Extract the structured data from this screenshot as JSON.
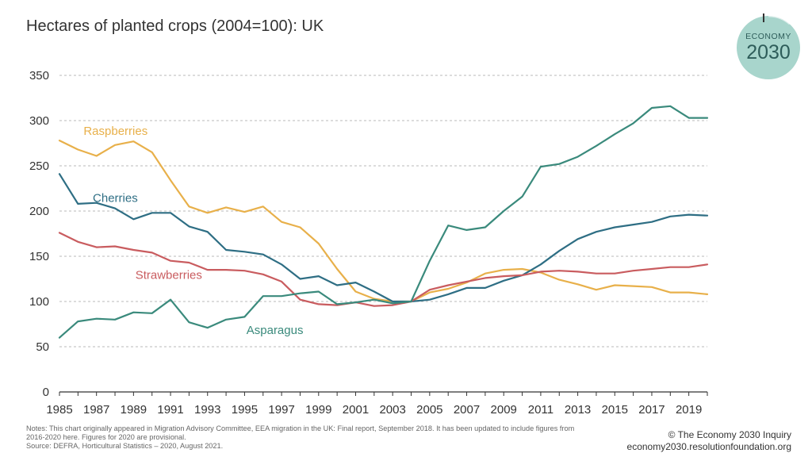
{
  "header": {
    "title": "Hectares of planted crops (2004=100): UK"
  },
  "badge": {
    "line1": "ECONOMY",
    "line2": "2030",
    "fill_color": "#a8d5cc",
    "text_color": "#2e5d5a"
  },
  "chart_data": {
    "type": "line",
    "title": "Hectares of planted crops (2004=100): UK",
    "xlabel": "",
    "ylabel": "",
    "xlim": [
      1985,
      2020
    ],
    "ylim": [
      0,
      350
    ],
    "y_ticks": [
      0,
      50,
      100,
      150,
      200,
      250,
      300,
      350
    ],
    "x_ticks": [
      1985,
      1987,
      1989,
      1991,
      1993,
      1995,
      1997,
      1999,
      2001,
      2003,
      2005,
      2007,
      2009,
      2011,
      2013,
      2015,
      2017,
      2019
    ],
    "grid": "horizontal-dashed",
    "x": [
      1985,
      1986,
      1987,
      1988,
      1989,
      1990,
      1991,
      1992,
      1993,
      1994,
      1995,
      1996,
      1997,
      1998,
      1999,
      2000,
      2001,
      2002,
      2003,
      2004,
      2005,
      2006,
      2007,
      2008,
      2009,
      2010,
      2011,
      2012,
      2013,
      2014,
      2015,
      2016,
      2017,
      2018,
      2019,
      2020
    ],
    "series": [
      {
        "name": "Raspberries",
        "color": "#e8b04a",
        "label_year": 1986.3,
        "label_value": 284,
        "values": [
          278,
          268,
          261,
          273,
          277,
          265,
          234,
          205,
          198,
          204,
          199,
          205,
          188,
          182,
          164,
          136,
          111,
          103,
          100,
          100,
          110,
          114,
          121,
          131,
          135,
          136,
          132,
          124,
          119,
          113,
          118,
          117,
          116,
          110,
          110,
          108
        ]
      },
      {
        "name": "Cherries",
        "color": "#2e6e84",
        "label_year": 1986.8,
        "label_value": 210,
        "values": [
          241,
          208,
          209,
          203,
          191,
          198,
          198,
          183,
          177,
          157,
          155,
          152,
          141,
          125,
          128,
          118,
          121,
          111,
          100,
          100,
          102,
          108,
          115,
          115,
          123,
          129,
          141,
          156,
          169,
          177,
          182,
          185,
          188,
          194,
          196,
          195
        ]
      },
      {
        "name": "Strawberries",
        "color": "#c95c5f",
        "label_year": 1989.1,
        "label_value": 125,
        "values": [
          176,
          166,
          160,
          161,
          157,
          154,
          145,
          143,
          135,
          135,
          134,
          130,
          122,
          102,
          97,
          96,
          99,
          95,
          96,
          100,
          113,
          118,
          122,
          126,
          128,
          129,
          133,
          134,
          133,
          131,
          131,
          134,
          136,
          138,
          138,
          141
        ]
      },
      {
        "name": "Asparagus",
        "color": "#3a8a7c",
        "label_year": 1995.1,
        "label_value": 64,
        "values": [
          60,
          78,
          81,
          80,
          88,
          87,
          102,
          77,
          71,
          80,
          83,
          106,
          106,
          109,
          111,
          97,
          99,
          102,
          98,
          100,
          145,
          184,
          179,
          182,
          200,
          216,
          249,
          252,
          260,
          272,
          285,
          297,
          314,
          316,
          303,
          303
        ]
      }
    ]
  },
  "footer": {
    "notes_line1": "Notes: This chart originally appeared in Migration Advisory Committee, EEA migration in the UK: Final report, September 2018. It has been updated to include figures from",
    "notes_line2": "2016-2020 here.  Figures for 2020 are provisional.",
    "notes_line3": "Source: DEFRA, Horticultural Statistics – 2020, August 2021.",
    "copyright": "© The Economy 2030 Inquiry",
    "website": "economy2030.resolutionfoundation.org"
  }
}
